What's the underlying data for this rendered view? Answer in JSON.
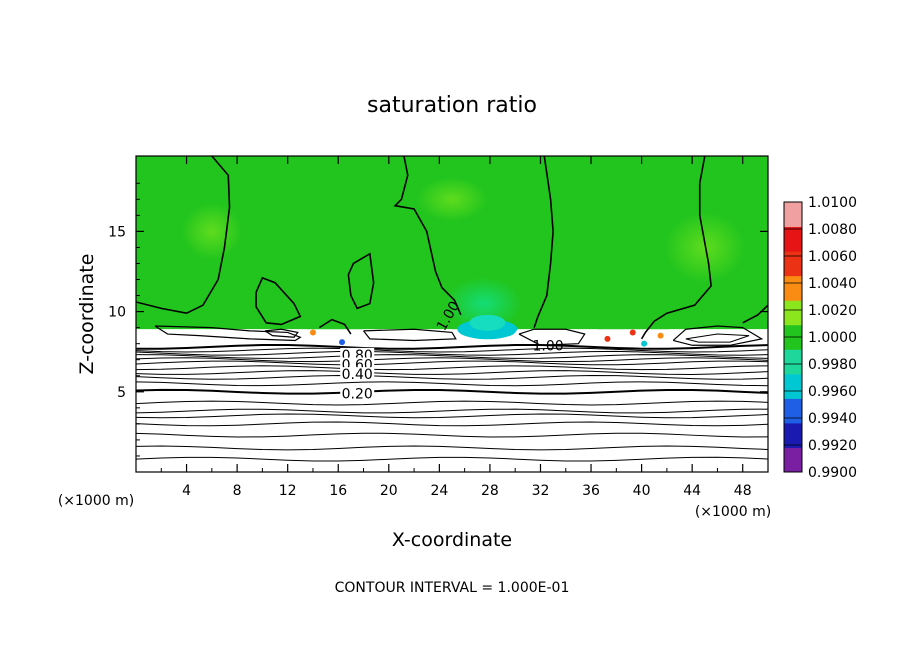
{
  "chart_data": {
    "type": "heatmap",
    "title": "saturation ratio",
    "xlabel": "X-coordinate",
    "ylabel": "Z-coordinate",
    "x_unit": "(×1000 m)",
    "y_unit": "(×1000 m)",
    "xlim": [
      0,
      50
    ],
    "ylim": [
      0,
      19.7
    ],
    "x_ticks": [
      4,
      8,
      12,
      16,
      20,
      24,
      28,
      32,
      36,
      40,
      44,
      48
    ],
    "y_ticks": [
      5,
      10,
      15
    ],
    "footnote": "CONTOUR INTERVAL = 1.000E-01",
    "colorbar": {
      "levels": [
        0.99,
        0.992,
        0.994,
        0.996,
        0.998,
        1.0,
        1.002,
        1.004,
        1.006,
        1.008,
        1.01
      ],
      "labels": [
        "0.9900",
        "0.9920",
        "0.9940",
        "0.9960",
        "0.9980",
        "1.0000",
        "1.0020",
        "1.0040",
        "1.0060",
        "1.0080",
        "1.0100"
      ],
      "colors": [
        "#7a1fa2",
        "#1a1ab0",
        "#1f5fe6",
        "#00c8d2",
        "#1ed79b",
        "#22c51e",
        "#8ce61e",
        "#fa8c14",
        "#eb3214",
        "#e61414",
        "#f0a0a0"
      ]
    },
    "contour_labels": [
      "1.00",
      "1.00",
      "0.80",
      "0.60",
      "0.40",
      "0.20"
    ],
    "field": {
      "background_ratio": 1.0,
      "moist_layer_bottom_km": 8.0,
      "moist_layer_top_km": 8.9
    },
    "stable_contours_z": [
      0.8,
      1.5,
      2.3,
      3.0,
      3.5,
      3.8,
      4.3,
      5.0,
      5.5,
      5.9,
      6.2,
      6.5,
      6.8,
      7.0,
      7.2,
      7.4,
      7.6,
      7.8
    ]
  }
}
